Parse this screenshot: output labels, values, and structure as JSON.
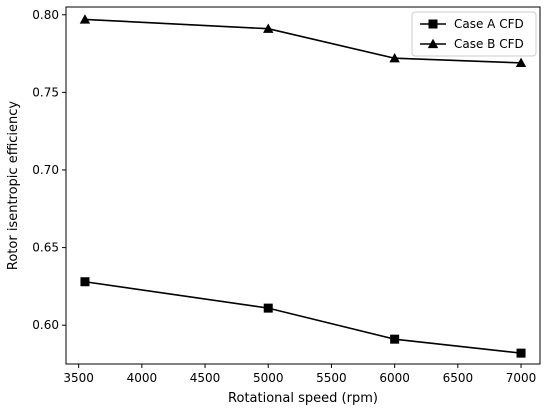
{
  "chart_data": {
    "type": "line",
    "title": "",
    "xlabel": "Rotational speed (rpm)",
    "ylabel": "Rotor isentropic efficiency",
    "x": [
      3550,
      5000,
      6000,
      7000
    ],
    "series": [
      {
        "name": "Case A CFD",
        "marker": "square",
        "values": [
          0.628,
          0.611,
          0.591,
          0.582
        ]
      },
      {
        "name": "Case B CFD",
        "marker": "triangle",
        "values": [
          0.797,
          0.791,
          0.772,
          0.769
        ]
      }
    ],
    "xlim": [
      3400,
      7150
    ],
    "ylim": [
      0.575,
      0.805
    ],
    "xticks": [
      3500,
      4000,
      4500,
      5000,
      5500,
      6000,
      6500,
      7000
    ],
    "yticks": [
      0.6,
      0.65,
      0.7,
      0.75,
      0.8
    ],
    "xtick_labels": [
      "3500",
      "4000",
      "4500",
      "5000",
      "5500",
      "6000",
      "6500",
      "7000"
    ],
    "ytick_labels": [
      "0.60",
      "0.65",
      "0.70",
      "0.75",
      "0.80"
    ],
    "grid": false,
    "legend_position": "top-right",
    "line_color": "#000000"
  }
}
